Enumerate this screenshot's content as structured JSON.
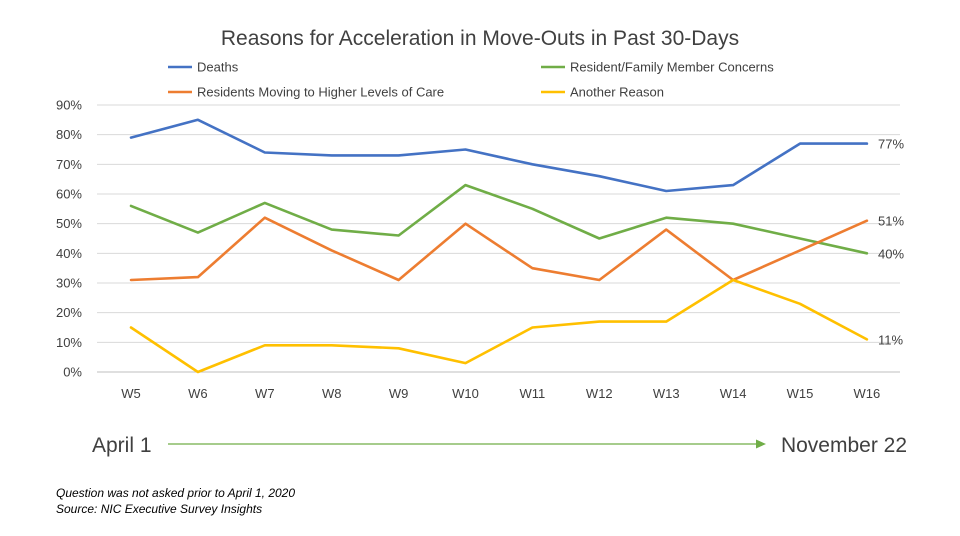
{
  "chart_data": {
    "type": "line",
    "title": "Reasons for Acceleration in Move-Outs in Past 30-Days",
    "categories": [
      "W5",
      "W6",
      "W7",
      "W8",
      "W9",
      "W10",
      "W11",
      "W12",
      "W13",
      "W14",
      "W15",
      "W16"
    ],
    "ylim": [
      0,
      90
    ],
    "yticks": [
      "0%",
      "10%",
      "20%",
      "30%",
      "40%",
      "50%",
      "60%",
      "70%",
      "80%",
      "90%"
    ],
    "grid": true,
    "legend_position": "top",
    "series": [
      {
        "name": "Deaths",
        "color": "#4472C4",
        "values": [
          79,
          85,
          74,
          73,
          73,
          75,
          70,
          66,
          61,
          63,
          77,
          77
        ],
        "end_label": "77%"
      },
      {
        "name": "Resident/Family Member Concerns",
        "color": "#70AD47",
        "values": [
          56,
          47,
          57,
          48,
          46,
          63,
          55,
          45,
          52,
          50,
          45,
          40
        ],
        "end_label": "40%"
      },
      {
        "name": "Residents Moving to Higher Levels of Care",
        "color": "#ED7D31",
        "values": [
          31,
          32,
          52,
          41,
          31,
          50,
          35,
          31,
          48,
          31,
          41,
          51
        ],
        "end_label": "51%"
      },
      {
        "name": "Another Reason",
        "color": "#FFC000",
        "values": [
          15,
          0,
          9,
          9,
          8,
          3,
          15,
          17,
          17,
          31,
          23,
          11
        ],
        "end_label": "11%"
      }
    ]
  },
  "timeline": {
    "start": "April 1",
    "end": "November 22",
    "arrow_color": "#70AD47"
  },
  "footnotes": {
    "line1": "Question was not asked prior to April 1, 2020",
    "line2": "Source: NIC Executive Survey Insights"
  }
}
